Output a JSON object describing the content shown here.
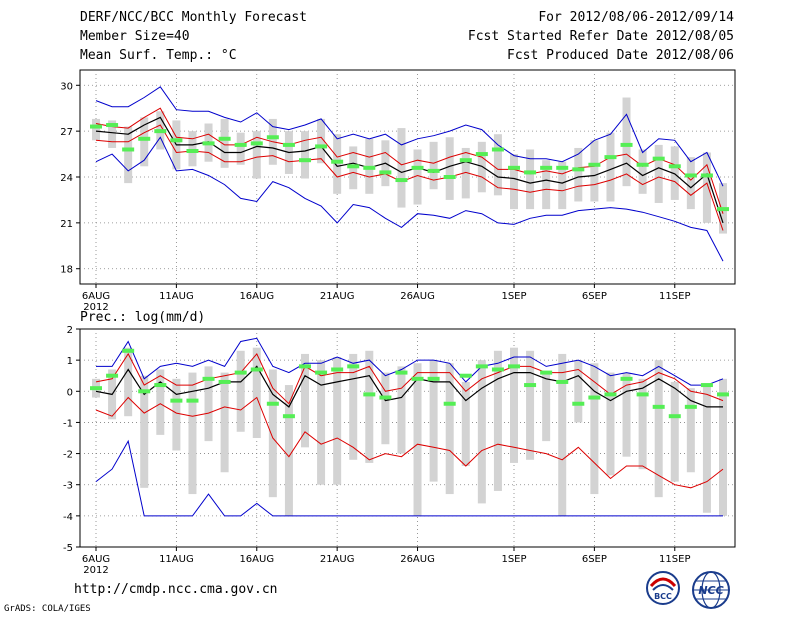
{
  "header": {
    "title": "DERF/NCC/BCC Monthly Forecast",
    "member_size": "Member Size=40",
    "variable": "Mean Surf. Temp.: °C",
    "period": "For 2012/08/06-2012/09/14",
    "started": "Fcst Started Refer Date 2012/08/05",
    "produced": "Fcst Produced Date 2012/08/06"
  },
  "panel2_label": "Prec.: log(mm/d)",
  "footer": {
    "url": "http://cmdp.ncc.cma.gov.cn",
    "grads": "GrADS: COLA/IGES",
    "logo_bcc": "BCC",
    "logo_ncc": "NCC"
  },
  "colors": {
    "ensemble_mean": "#000000",
    "spread": "#dd0000",
    "extremes": "#0000cc",
    "observed": "#55ee55",
    "box": "#d3d3d3",
    "grid": "#808080"
  },
  "chart_data": [
    {
      "type": "line",
      "title": "Mean Surf. Temp.: °C",
      "x_tick_labels": [
        "6AUG",
        "11AUG",
        "16AUG",
        "21AUG",
        "26AUG",
        "1SEP",
        "6SEP",
        "11SEP"
      ],
      "x_tick_days": [
        0,
        5,
        10,
        15,
        20,
        26,
        31,
        36
      ],
      "x_sublabel": "2012",
      "ylim": [
        17,
        31
      ],
      "y_ticks": [
        18,
        21,
        24,
        27,
        30
      ],
      "series": [
        {
          "name": "ensemble mean",
          "values": [
            27.0,
            26.9,
            26.8,
            27.4,
            27.9,
            26.1,
            26.1,
            26.3,
            25.6,
            25.6,
            26.0,
            25.9,
            25.6,
            25.7,
            26.0,
            24.7,
            24.9,
            24.6,
            24.9,
            24.3,
            24.6,
            24.3,
            24.7,
            25.0,
            24.7,
            24.0,
            23.9,
            23.6,
            23.8,
            23.6,
            24.0,
            24.1,
            24.5,
            24.9,
            24.1,
            24.6,
            24.2,
            23.3,
            24.2,
            21.0
          ]
        },
        {
          "name": "upper spread",
          "values": [
            27.5,
            27.3,
            27.2,
            27.9,
            28.5,
            26.6,
            26.5,
            26.8,
            26.1,
            26.1,
            26.6,
            26.3,
            26.1,
            26.4,
            26.6,
            25.3,
            25.6,
            25.3,
            25.6,
            24.8,
            25.1,
            24.9,
            25.3,
            25.6,
            25.3,
            24.5,
            24.5,
            24.2,
            24.4,
            24.2,
            24.6,
            24.7,
            25.3,
            25.5,
            24.7,
            25.2,
            24.8,
            23.8,
            24.8,
            21.6
          ]
        },
        {
          "name": "lower spread",
          "values": [
            26.4,
            26.3,
            26.3,
            26.9,
            27.4,
            25.6,
            25.7,
            25.6,
            25.0,
            25.0,
            25.3,
            25.4,
            25.0,
            25.1,
            25.2,
            24.0,
            24.3,
            24.0,
            24.2,
            23.7,
            24.1,
            23.8,
            24.0,
            24.3,
            24.0,
            23.3,
            23.2,
            23.0,
            23.2,
            23.1,
            23.4,
            23.5,
            23.8,
            24.2,
            23.5,
            24.0,
            23.7,
            22.8,
            23.6,
            20.5
          ]
        },
        {
          "name": "maximum",
          "values": [
            29.0,
            28.6,
            28.6,
            29.2,
            29.9,
            28.4,
            28.3,
            28.3,
            27.9,
            27.6,
            28.2,
            27.3,
            27.1,
            27.4,
            27.8,
            26.5,
            26.8,
            26.5,
            26.8,
            26.1,
            26.5,
            26.7,
            27.0,
            27.4,
            27.1,
            26.1,
            25.4,
            25.2,
            25.2,
            25.0,
            25.5,
            26.4,
            26.8,
            28.1,
            25.6,
            26.5,
            26.4,
            25.0,
            25.6,
            23.4
          ]
        },
        {
          "name": "minimum",
          "values": [
            25.0,
            25.5,
            24.4,
            25.1,
            26.6,
            24.4,
            24.5,
            24.1,
            23.5,
            22.6,
            22.4,
            23.7,
            23.3,
            22.6,
            22.1,
            21.0,
            22.2,
            22.0,
            21.3,
            20.7,
            21.6,
            21.5,
            21.3,
            21.8,
            21.6,
            21.0,
            20.9,
            21.3,
            21.5,
            21.5,
            21.8,
            21.9,
            22.0,
            21.9,
            21.7,
            21.4,
            21.1,
            20.7,
            20.5,
            18.5
          ]
        },
        {
          "name": "box top",
          "values": [
            27.8,
            27.7,
            27.3,
            27.9,
            28.3,
            27.7,
            27.0,
            27.5,
            27.8,
            26.9,
            27.0,
            27.8,
            27.0,
            27.0,
            27.8,
            26.8,
            26.0,
            26.5,
            26.4,
            27.2,
            25.8,
            26.3,
            26.6,
            25.9,
            26.3,
            26.8,
            25.5,
            25.8,
            25.1,
            25.0,
            25.9,
            26.4,
            26.9,
            29.2,
            25.8,
            26.1,
            26.0,
            25.3,
            25.6,
            23.6
          ]
        },
        {
          "name": "box bottom",
          "values": [
            26.4,
            25.9,
            23.6,
            24.7,
            25.8,
            24.5,
            24.7,
            25.0,
            24.6,
            24.8,
            23.9,
            24.8,
            24.2,
            23.9,
            24.9,
            22.9,
            23.2,
            22.9,
            23.4,
            22.0,
            22.2,
            23.2,
            22.5,
            22.6,
            23.0,
            22.8,
            21.9,
            21.9,
            21.9,
            21.9,
            22.4,
            22.4,
            22.4,
            23.4,
            22.9,
            22.3,
            22.5,
            21.9,
            21.0,
            20.3
          ]
        },
        {
          "name": "observed",
          "values": [
            27.3,
            27.4,
            25.8,
            26.5,
            27.0,
            26.4,
            25.7,
            26.2,
            26.5,
            26.1,
            26.2,
            26.6,
            26.1,
            25.1,
            26.0,
            25.0,
            24.7,
            24.6,
            24.3,
            23.8,
            24.6,
            24.4,
            24.0,
            25.1,
            25.5,
            25.8,
            24.6,
            24.3,
            24.6,
            24.6,
            24.5,
            24.8,
            25.3,
            26.1,
            24.8,
            25.2,
            24.7,
            24.1,
            24.1,
            21.9
          ]
        }
      ]
    },
    {
      "type": "line",
      "title": "Prec.: log(mm/d)",
      "x_tick_labels": [
        "6AUG",
        "11AUG",
        "16AUG",
        "21AUG",
        "26AUG",
        "1SEP",
        "6SEP",
        "11SEP"
      ],
      "x_tick_days": [
        0,
        5,
        10,
        15,
        20,
        26,
        31,
        36
      ],
      "x_sublabel": "2012",
      "ylim": [
        -5,
        2
      ],
      "y_ticks": [
        -5,
        -4,
        -3,
        -2,
        -1,
        0,
        1,
        2
      ],
      "series": [
        {
          "name": "ensemble mean",
          "values": [
            0.0,
            -0.1,
            0.7,
            -0.1,
            0.3,
            -0.1,
            0.0,
            0.1,
            0.3,
            0.3,
            0.8,
            -0.1,
            -0.5,
            0.5,
            0.2,
            0.3,
            0.4,
            0.5,
            -0.3,
            -0.2,
            0.4,
            0.3,
            0.3,
            -0.3,
            0.1,
            0.4,
            0.6,
            0.6,
            0.4,
            0.3,
            0.5,
            0.0,
            -0.3,
            0.0,
            0.1,
            0.4,
            0.1,
            -0.3,
            -0.5,
            -0.5
          ]
        },
        {
          "name": "upper spread",
          "values": [
            0.3,
            0.4,
            1.2,
            0.2,
            0.5,
            0.2,
            0.2,
            0.4,
            0.5,
            0.6,
            1.2,
            0.1,
            -0.4,
            0.8,
            0.5,
            0.6,
            0.6,
            0.8,
            0.0,
            0.1,
            0.6,
            0.6,
            0.6,
            0.0,
            0.4,
            0.6,
            0.8,
            0.8,
            0.6,
            0.6,
            0.7,
            0.3,
            -0.1,
            0.2,
            0.3,
            0.6,
            0.4,
            0.0,
            -0.1,
            -0.3
          ]
        },
        {
          "name": "lower spread",
          "values": [
            -0.6,
            -0.8,
            -0.2,
            -0.7,
            -0.4,
            -0.7,
            -0.8,
            -0.7,
            -0.5,
            -0.6,
            -0.2,
            -1.5,
            -2.1,
            -1.3,
            -1.7,
            -1.5,
            -1.8,
            -2.2,
            -2.0,
            -2.1,
            -1.7,
            -1.8,
            -1.9,
            -2.4,
            -1.9,
            -1.7,
            -1.8,
            -1.9,
            -2.0,
            -2.2,
            -1.8,
            -2.3,
            -2.8,
            -2.4,
            -2.4,
            -2.7,
            -3.0,
            -3.1,
            -2.9,
            -2.5
          ]
        },
        {
          "name": "maximum",
          "values": [
            0.8,
            0.8,
            1.6,
            0.4,
            0.8,
            0.9,
            0.8,
            1.0,
            0.8,
            1.6,
            1.7,
            0.8,
            0.6,
            0.9,
            0.9,
            1.1,
            0.9,
            1.0,
            0.5,
            0.7,
            1.0,
            1.0,
            0.9,
            0.3,
            0.8,
            0.9,
            1.1,
            1.1,
            0.8,
            0.9,
            1.0,
            0.8,
            0.5,
            0.6,
            0.5,
            0.8,
            0.5,
            0.2,
            0.2,
            0.4
          ]
        },
        {
          "name": "minimum",
          "values": [
            -2.9,
            -2.5,
            -1.6,
            -4.0,
            -4.0,
            -4.0,
            -4.0,
            -3.3,
            -4.0,
            -4.0,
            -3.6,
            -4.0,
            -4.0,
            -4.0,
            -4.0,
            -4.0,
            -4.0,
            -4.0,
            -4.0,
            -4.0,
            -4.0,
            -4.0,
            -4.0,
            -4.0,
            -4.0,
            -4.0,
            -4.0,
            -4.0,
            -4.0,
            -4.0,
            -4.0,
            -4.0,
            -4.0,
            -4.0,
            -4.0,
            -4.0,
            -4.0,
            -4.0,
            -4.0,
            -4.0
          ]
        },
        {
          "name": "box top",
          "values": [
            0.4,
            0.7,
            1.4,
            0.5,
            0.7,
            0.4,
            0.6,
            0.8,
            0.6,
            1.3,
            1.4,
            0.7,
            0.2,
            1.2,
            1.0,
            1.1,
            1.2,
            1.3,
            0.6,
            0.8,
            0.9,
            1.0,
            0.9,
            0.3,
            1.0,
            1.3,
            1.4,
            1.3,
            0.6,
            1.2,
            1.0,
            0.9,
            0.6,
            0.6,
            0.4,
            1.0,
            0.3,
            0.1,
            0.2,
            0.4
          ]
        },
        {
          "name": "box bottom",
          "values": [
            -0.2,
            -0.9,
            -0.8,
            -3.1,
            -1.4,
            -1.9,
            -3.3,
            -1.6,
            -2.6,
            -1.3,
            -1.5,
            -3.4,
            -4.0,
            -1.8,
            -3.0,
            -3.0,
            -2.2,
            -2.3,
            -1.7,
            -2.0,
            -4.0,
            -2.9,
            -3.3,
            -2.4,
            -3.6,
            -3.2,
            -2.3,
            -2.2,
            -1.6,
            -4.0,
            -1.0,
            -3.3,
            -2.7,
            -2.1,
            -2.5,
            -3.4,
            -2.9,
            -2.6,
            -3.9,
            -4.0
          ]
        },
        {
          "name": "observed",
          "values": [
            0.1,
            0.5,
            1.3,
            0.0,
            0.2,
            -0.3,
            -0.3,
            0.4,
            0.3,
            0.6,
            0.7,
            -0.4,
            -0.8,
            0.8,
            0.6,
            0.7,
            0.8,
            -0.1,
            -0.2,
            0.6,
            0.4,
            0.4,
            -0.4,
            0.5,
            0.8,
            0.7,
            0.8,
            0.2,
            0.6,
            0.3,
            -0.4,
            -0.2,
            -0.1,
            0.4,
            -0.1,
            -0.5,
            -0.8,
            -0.5,
            0.2,
            -0.1
          ]
        }
      ]
    }
  ]
}
